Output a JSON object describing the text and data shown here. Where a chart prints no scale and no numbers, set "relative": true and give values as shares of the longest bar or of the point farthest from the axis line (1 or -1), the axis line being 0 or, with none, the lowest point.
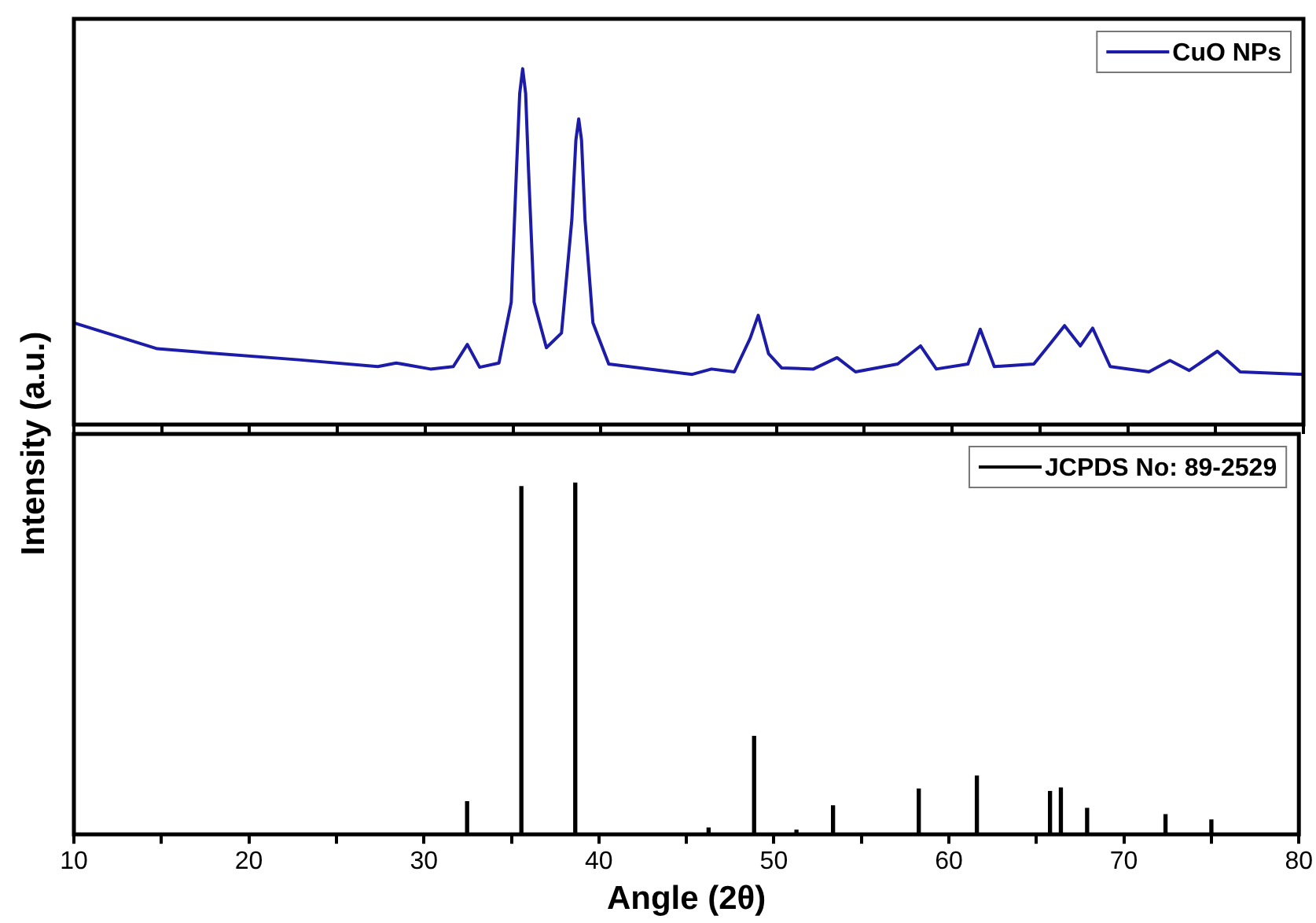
{
  "chart_data": [
    {
      "type": "line",
      "relative": true,
      "xlim": [
        10,
        80
      ],
      "xticks": [
        10,
        {
          "value": 15,
          "label": null
        },
        20,
        {
          "value": 25,
          "label": null
        },
        30,
        {
          "value": 35,
          "label": null
        },
        40,
        {
          "value": 45,
          "label": null
        },
        50,
        {
          "value": 55,
          "label": null
        },
        60,
        {
          "value": 65,
          "label": null
        },
        70,
        {
          "value": 75,
          "label": null
        },
        80
      ],
      "tick_labels": false,
      "grid": false,
      "legend": "top right",
      "marker": "none",
      "line_style": "solid",
      "series": [
        {
          "name": "CuO NPs",
          "color": "#1c1ca8",
          "x": [
            10,
            14.75,
            18.3,
            22.8,
            27.3,
            28.35,
            30.3,
            31.6,
            32.4,
            33.1,
            34.2,
            34.9,
            35.2,
            35.38,
            35.55,
            35.72,
            35.88,
            36.2,
            36.9,
            37.76,
            38.35,
            38.58,
            38.74,
            38.9,
            39.1,
            39.55,
            40.45,
            45.2,
            46.3,
            47.6,
            48.5,
            48.96,
            49.55,
            50.3,
            52.1,
            53.45,
            54.5,
            56.9,
            58.2,
            59.1,
            60.9,
            61.6,
            62.4,
            64.65,
            65.6,
            66.4,
            67.3,
            68.0,
            69.0,
            71.2,
            72.4,
            73.5,
            75.1,
            76.4,
            80
          ],
          "values": [
            0.286,
            0.213,
            0.199,
            0.182,
            0.163,
            0.173,
            0.156,
            0.163,
            0.225,
            0.161,
            0.173,
            0.344,
            0.719,
            0.93,
            1.0,
            0.93,
            0.719,
            0.344,
            0.216,
            0.257,
            0.576,
            0.8,
            0.859,
            0.8,
            0.576,
            0.286,
            0.17,
            0.141,
            0.156,
            0.148,
            0.242,
            0.307,
            0.199,
            0.159,
            0.156,
            0.188,
            0.148,
            0.17,
            0.221,
            0.156,
            0.17,
            0.268,
            0.163,
            0.17,
            0.228,
            0.278,
            0.221,
            0.271,
            0.163,
            0.148,
            0.18,
            0.152,
            0.206,
            0.148,
            0.141
          ]
        }
      ]
    },
    {
      "type": "bar",
      "relative": true,
      "xlim": [
        10,
        80
      ],
      "xticks": [
        10,
        {
          "value": 15,
          "label": null
        },
        20,
        {
          "value": 25,
          "label": null
        },
        30,
        {
          "value": 35,
          "label": null
        },
        40,
        {
          "value": 45,
          "label": null
        },
        50,
        {
          "value": 55,
          "label": null
        },
        60,
        {
          "value": 65,
          "label": null
        },
        70,
        {
          "value": 75,
          "label": null
        },
        80
      ],
      "tick_labels": "x",
      "grid": false,
      "legend": "top right",
      "xlabel": "Angle (2θ)",
      "ylabel": "Intensity (a.u.)",
      "series": [
        {
          "name": "JCPDS No: 89-2529",
          "color": "#000000",
          "x": [
            32.47,
            35.57,
            38.65,
            46.27,
            48.87,
            51.29,
            53.38,
            58.28,
            61.6,
            65.78,
            66.4,
            67.9,
            72.38,
            75.0
          ],
          "values": [
            0.093,
            0.99,
            1.0,
            0.018,
            0.279,
            0.012,
            0.081,
            0.129,
            0.166,
            0.122,
            0.132,
            0.074,
            0.056,
            0.041
          ]
        }
      ]
    }
  ]
}
